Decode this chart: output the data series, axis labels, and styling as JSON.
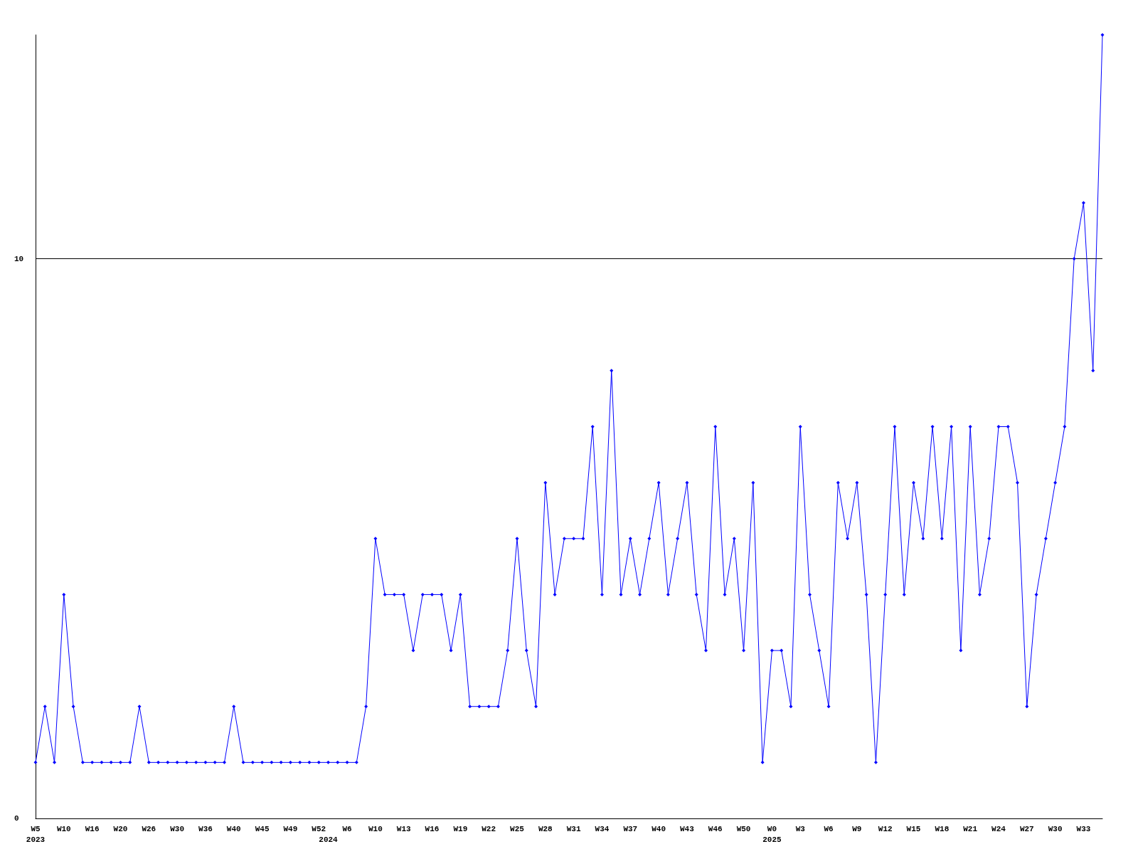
{
  "chart_data": {
    "type": "line",
    "categories": [
      "W5\n2023",
      null,
      null,
      "W10",
      null,
      null,
      "W16",
      null,
      null,
      "W20",
      null,
      null,
      "W26",
      null,
      null,
      "W30",
      null,
      null,
      "W36",
      null,
      null,
      "W40",
      null,
      null,
      "W45",
      null,
      null,
      "W49",
      null,
      null,
      "W52",
      "\n2024",
      null,
      "W6",
      null,
      null,
      "W10",
      null,
      null,
      "W13",
      null,
      null,
      "W16",
      null,
      null,
      "W19",
      null,
      null,
      "W22",
      null,
      null,
      "W25",
      null,
      null,
      "W28",
      null,
      null,
      "W31",
      null,
      null,
      "W34",
      null,
      null,
      "W37",
      null,
      null,
      "W40",
      null,
      null,
      "W43",
      null,
      null,
      "W46",
      null,
      null,
      "W50",
      null,
      null,
      "W0\n2025",
      null,
      null,
      "W3",
      null,
      null,
      "W6",
      null,
      null,
      "W9",
      null,
      null,
      "W12",
      null,
      null,
      "W15",
      null,
      null,
      "W18",
      null,
      null,
      "W21",
      null,
      null,
      "W24",
      null,
      null,
      "W27",
      null,
      null,
      "W30",
      null,
      null,
      "W33",
      null,
      null
    ],
    "series": [
      {
        "color": "#0000ff",
        "values": [
          1,
          2,
          1,
          4,
          2,
          1,
          1,
          1,
          1,
          1,
          1,
          2,
          1,
          1,
          1,
          1,
          1,
          1,
          1,
          1,
          1,
          2,
          1,
          1,
          1,
          1,
          1,
          1,
          1,
          1,
          1,
          1,
          1,
          1,
          1,
          2,
          5,
          4,
          4,
          4,
          3,
          4,
          4,
          4,
          3,
          4,
          2,
          2,
          2,
          2,
          3,
          5,
          3,
          2,
          6,
          4,
          5,
          5,
          5,
          7,
          4,
          8,
          4,
          5,
          4,
          5,
          6,
          4,
          5,
          6,
          4,
          3,
          7,
          4,
          5,
          3,
          6,
          1,
          3,
          3,
          2,
          7,
          4,
          3,
          2,
          6,
          5,
          6,
          4,
          1,
          4,
          7,
          4,
          6,
          5,
          7,
          5,
          7,
          3,
          7,
          4,
          5,
          7,
          7,
          6,
          2,
          4,
          5,
          6,
          7,
          10,
          11,
          8,
          14
        ]
      }
    ],
    "ylim": [
      0,
      14
    ],
    "yticks": [
      0,
      10
    ],
    "grid": "y",
    "marker": "diamond",
    "line_style": "solid"
  }
}
